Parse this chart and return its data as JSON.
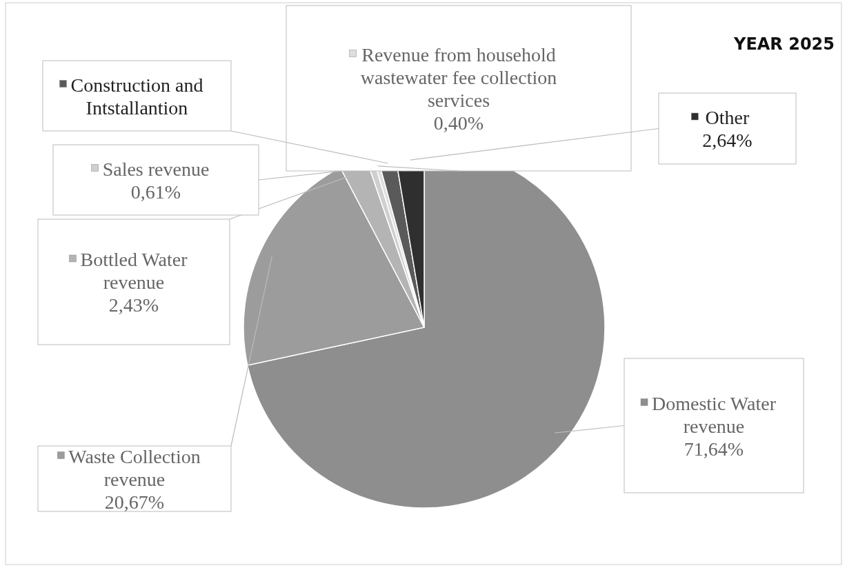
{
  "chart_data": {
    "type": "pie",
    "title": "YEAR 2025",
    "categories": [
      "Domestic Water revenue",
      "Waste Collection revenue",
      "Bottled Water revenue",
      "Sales revenue",
      "Revenue from household wastewater fee collection services",
      "Construction and Intstallantion",
      "Other"
    ],
    "values": [
      71.64,
      20.67,
      2.43,
      0.61,
      0.4,
      1.61,
      2.64
    ],
    "value_labels": [
      "71,64%",
      "20,67%",
      "2,43%",
      "0,61%",
      "0,40%",
      null,
      "2,64%"
    ],
    "legend": "left",
    "colors": [
      "#8e8e8e",
      "#9c9c9c",
      "#b4b4b4",
      "#cfcfcf",
      "#dedede",
      "#5a5a5a",
      "#2f2f2f"
    ]
  }
}
